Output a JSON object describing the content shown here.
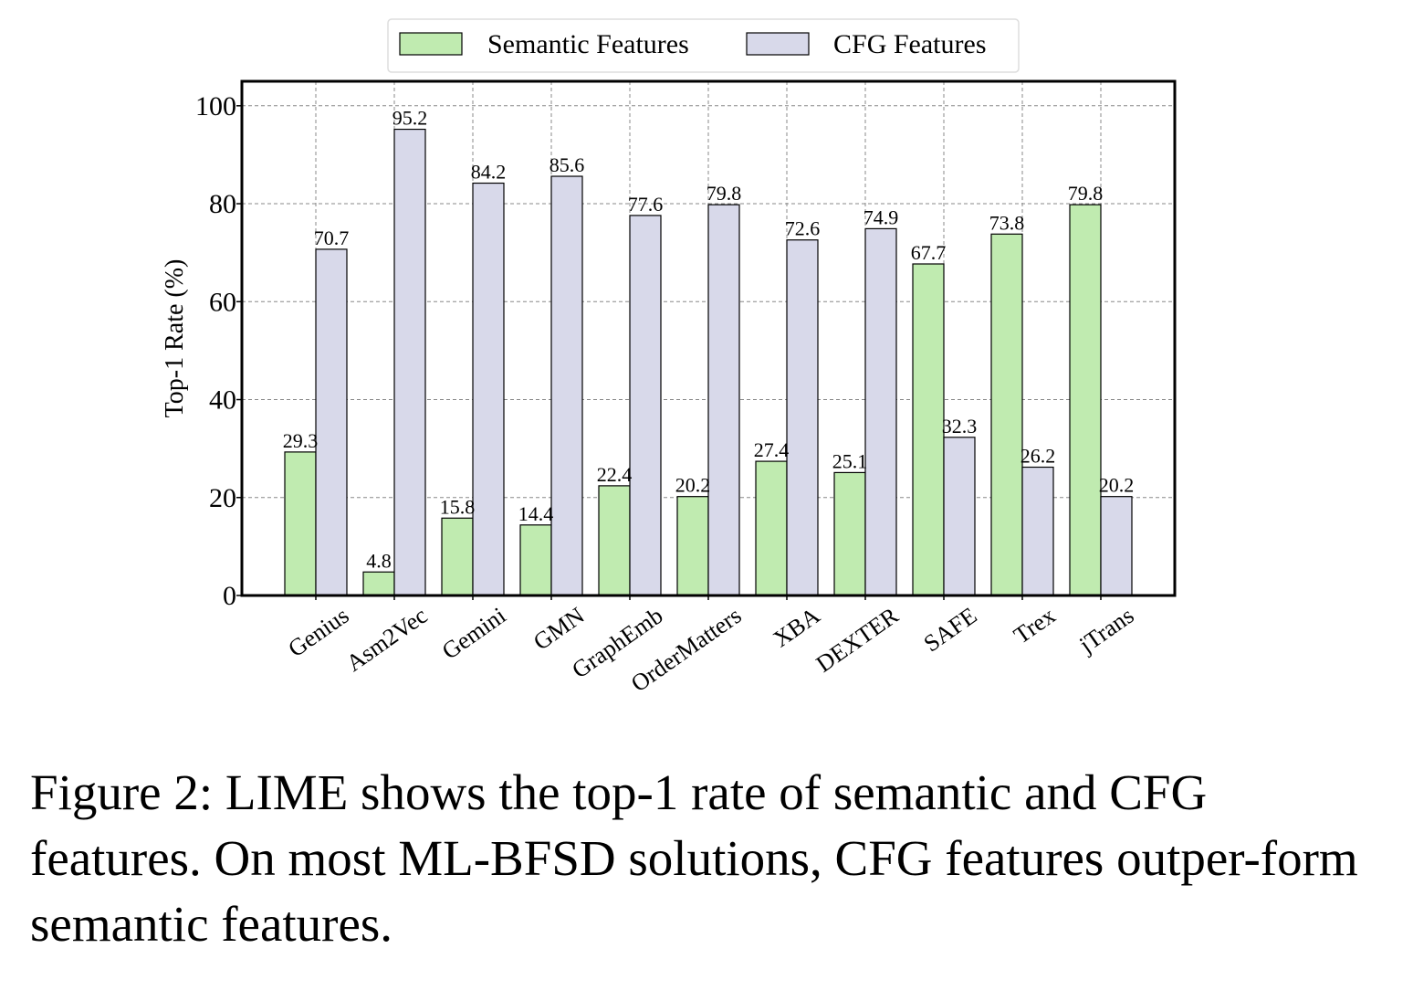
{
  "chart_data": {
    "type": "bar",
    "title": "",
    "xlabel": "",
    "ylabel": "Top-1 Rate (%)",
    "ylim": [
      0,
      105
    ],
    "yticks": [
      0,
      20,
      40,
      60,
      80,
      100
    ],
    "grid": true,
    "legend_position": "top-center",
    "categories": [
      "Genius",
      "Asm2Vec",
      "Gemini",
      "GMN",
      "GraphEmb",
      "OrderMatters",
      "XBA",
      "DEXTER",
      "SAFE",
      "Trex",
      "jTrans"
    ],
    "series": [
      {
        "name": "Semantic Features",
        "color": "#c0ebb0",
        "values": [
          29.3,
          4.8,
          15.8,
          14.4,
          22.4,
          20.2,
          27.4,
          25.1,
          67.7,
          73.8,
          79.8
        ]
      },
      {
        "name": "CFG Features",
        "color": "#d8d9ea",
        "values": [
          70.7,
          95.2,
          84.2,
          85.6,
          77.6,
          79.8,
          72.6,
          74.9,
          32.3,
          26.2,
          20.2
        ]
      }
    ]
  },
  "caption": "Figure 2: LIME shows the top-1 rate of semantic and CFG features. On most ML-BFSD solutions, CFG features outper-form semantic features."
}
